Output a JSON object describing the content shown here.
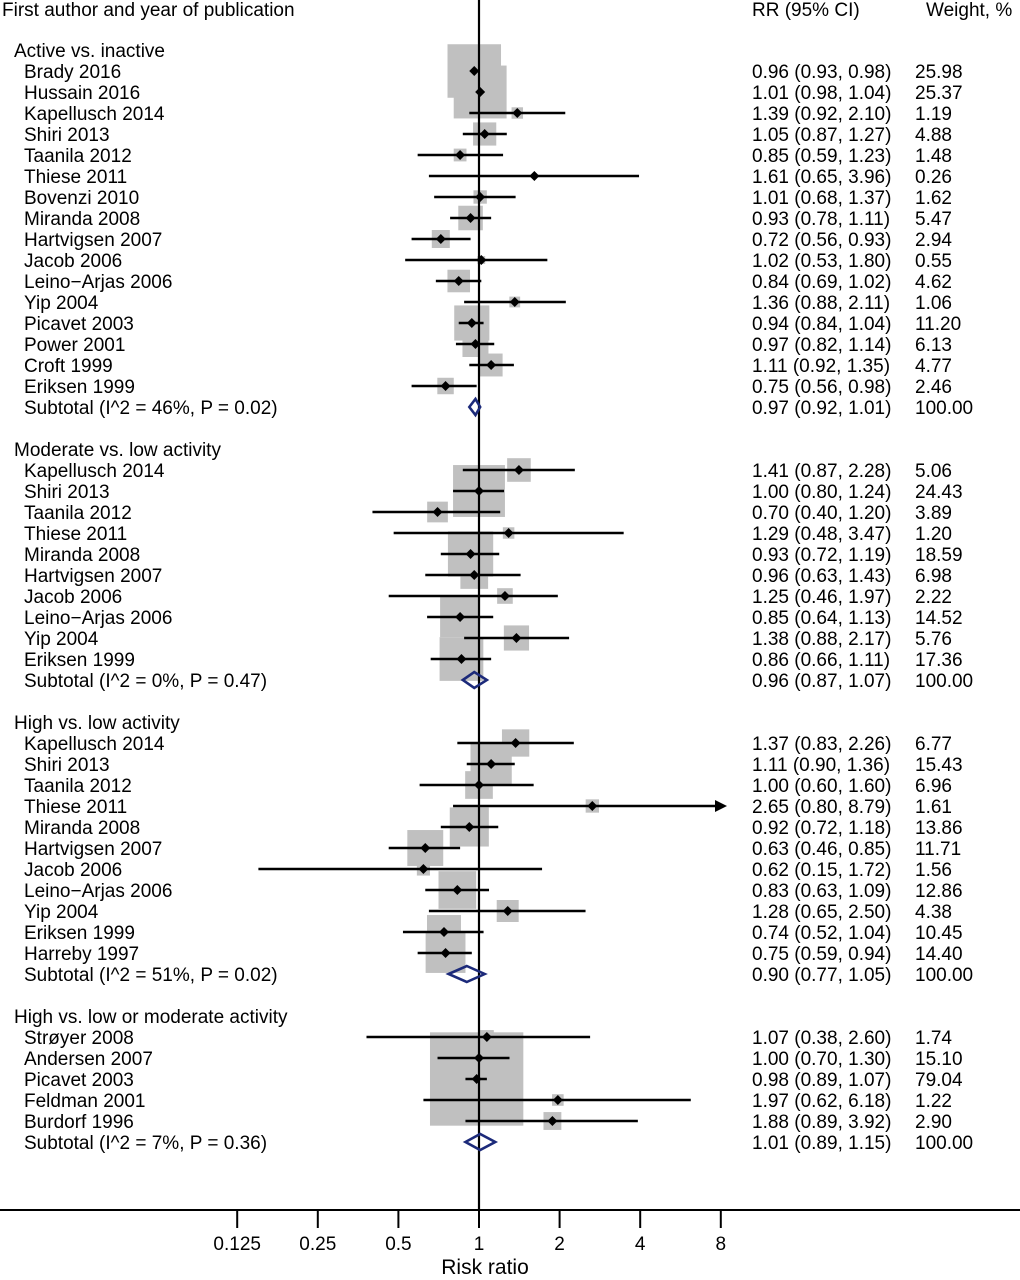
{
  "chart_data": {
    "type": "forest",
    "columns": {
      "study": "First author and year of publication",
      "rr": "RR (95% CI)",
      "weight": "Weight, %"
    },
    "xlabel": "Risk ratio",
    "x_scale": "log2",
    "xlim": [
      0.125,
      8
    ],
    "ticks": [
      {
        "value": 0.125,
        "label": "0.125"
      },
      {
        "value": 0.25,
        "label": "0.25"
      },
      {
        "value": 0.5,
        "label": "0.5"
      },
      {
        "value": 1,
        "label": "1"
      },
      {
        "value": 2,
        "label": "2"
      },
      {
        "value": 4,
        "label": "4"
      },
      {
        "value": 8,
        "label": "8"
      }
    ],
    "reference_line": 1,
    "colors": {
      "box": "#c0c0c0",
      "diamond": "#1c2a7a",
      "line": "#000000"
    },
    "groups": [
      {
        "label": "Active vs. inactive",
        "studies": [
          {
            "name": "Brady 2016",
            "rr": 0.96,
            "lo": 0.93,
            "hi": 0.98,
            "text": "0.96 (0.93, 0.98)",
            "weight": 25.98,
            "weight_text": "25.98"
          },
          {
            "name": "Hussain 2016",
            "rr": 1.01,
            "lo": 0.98,
            "hi": 1.04,
            "text": "1.01 (0.98, 1.04)",
            "weight": 25.37,
            "weight_text": "25.37"
          },
          {
            "name": "Kapellusch 2014",
            "rr": 1.39,
            "lo": 0.92,
            "hi": 2.1,
            "text": "1.39 (0.92, 2.10)",
            "weight": 1.19,
            "weight_text": "1.19"
          },
          {
            "name": "Shiri 2013",
            "rr": 1.05,
            "lo": 0.87,
            "hi": 1.27,
            "text": "1.05 (0.87, 1.27)",
            "weight": 4.88,
            "weight_text": "4.88"
          },
          {
            "name": "Taanila 2012",
            "rr": 0.85,
            "lo": 0.59,
            "hi": 1.23,
            "text": "0.85 (0.59, 1.23)",
            "weight": 1.48,
            "weight_text": "1.48"
          },
          {
            "name": "Thiese 2011",
            "rr": 1.61,
            "lo": 0.65,
            "hi": 3.96,
            "text": "1.61 (0.65, 3.96)",
            "weight": 0.26,
            "weight_text": "0.26"
          },
          {
            "name": "Bovenzi 2010",
            "rr": 1.01,
            "lo": 0.68,
            "hi": 1.37,
            "text": "1.01 (0.68, 1.37)",
            "weight": 1.62,
            "weight_text": "1.62"
          },
          {
            "name": "Miranda 2008",
            "rr": 0.93,
            "lo": 0.78,
            "hi": 1.11,
            "text": "0.93 (0.78, 1.11)",
            "weight": 5.47,
            "weight_text": "5.47"
          },
          {
            "name": "Hartvigsen 2007",
            "rr": 0.72,
            "lo": 0.56,
            "hi": 0.93,
            "text": "0.72 (0.56, 0.93)",
            "weight": 2.94,
            "weight_text": "2.94"
          },
          {
            "name": "Jacob 2006",
            "rr": 1.02,
            "lo": 0.53,
            "hi": 1.8,
            "text": "1.02 (0.53, 1.80)",
            "weight": 0.55,
            "weight_text": "0.55"
          },
          {
            "name": "Leino−Arjas 2006",
            "rr": 0.84,
            "lo": 0.69,
            "hi": 1.02,
            "text": "0.84 (0.69, 1.02)",
            "weight": 4.62,
            "weight_text": "4.62"
          },
          {
            "name": "Yip 2004",
            "rr": 1.36,
            "lo": 0.88,
            "hi": 2.11,
            "text": "1.36 (0.88, 2.11)",
            "weight": 1.06,
            "weight_text": "1.06"
          },
          {
            "name": "Picavet 2003",
            "rr": 0.94,
            "lo": 0.84,
            "hi": 1.04,
            "text": "0.94 (0.84, 1.04)",
            "weight": 11.2,
            "weight_text": "11.20"
          },
          {
            "name": "Power 2001",
            "rr": 0.97,
            "lo": 0.82,
            "hi": 1.14,
            "text": "0.97 (0.82, 1.14)",
            "weight": 6.13,
            "weight_text": "6.13"
          },
          {
            "name": "Croft 1999",
            "rr": 1.11,
            "lo": 0.92,
            "hi": 1.35,
            "text": "1.11 (0.92, 1.35)",
            "weight": 4.77,
            "weight_text": "4.77"
          },
          {
            "name": "Eriksen 1999",
            "rr": 0.75,
            "lo": 0.56,
            "hi": 0.98,
            "text": "0.75 (0.56, 0.98)",
            "weight": 2.46,
            "weight_text": "2.46"
          }
        ],
        "subtotal": {
          "label": "Subtotal (I^2 = 46%, P = 0.02)",
          "rr": 0.97,
          "lo": 0.92,
          "hi": 1.01,
          "text": "0.97 (0.92, 1.01)",
          "weight_text": "100.00"
        }
      },
      {
        "label": "Moderate vs. low activity",
        "studies": [
          {
            "name": "Kapellusch 2014",
            "rr": 1.41,
            "lo": 0.87,
            "hi": 2.28,
            "text": "1.41 (0.87, 2.28)",
            "weight": 5.06,
            "weight_text": "5.06"
          },
          {
            "name": "Shiri 2013",
            "rr": 1.0,
            "lo": 0.8,
            "hi": 1.24,
            "text": "1.00 (0.80, 1.24)",
            "weight": 24.43,
            "weight_text": "24.43"
          },
          {
            "name": "Taanila 2012",
            "rr": 0.7,
            "lo": 0.4,
            "hi": 1.2,
            "text": "0.70 (0.40, 1.20)",
            "weight": 3.89,
            "weight_text": "3.89"
          },
          {
            "name": "Thiese 2011",
            "rr": 1.29,
            "lo": 0.48,
            "hi": 3.47,
            "text": "1.29 (0.48, 3.47)",
            "weight": 1.2,
            "weight_text": "1.20"
          },
          {
            "name": "Miranda 2008",
            "rr": 0.93,
            "lo": 0.72,
            "hi": 1.19,
            "text": "0.93 (0.72, 1.19)",
            "weight": 18.59,
            "weight_text": "18.59"
          },
          {
            "name": "Hartvigsen 2007",
            "rr": 0.96,
            "lo": 0.63,
            "hi": 1.43,
            "text": "0.96 (0.63, 1.43)",
            "weight": 6.98,
            "weight_text": "6.98"
          },
          {
            "name": "Jacob 2006",
            "rr": 1.25,
            "lo": 0.46,
            "hi": 1.97,
            "text": "1.25 (0.46, 1.97)",
            "weight": 2.22,
            "weight_text": "2.22"
          },
          {
            "name": "Leino−Arjas 2006",
            "rr": 0.85,
            "lo": 0.64,
            "hi": 1.13,
            "text": "0.85 (0.64, 1.13)",
            "weight": 14.52,
            "weight_text": "14.52"
          },
          {
            "name": "Yip 2004",
            "rr": 1.38,
            "lo": 0.88,
            "hi": 2.17,
            "text": "1.38 (0.88, 2.17)",
            "weight": 5.76,
            "weight_text": "5.76"
          },
          {
            "name": "Eriksen 1999",
            "rr": 0.86,
            "lo": 0.66,
            "hi": 1.11,
            "text": "0.86 (0.66, 1.11)",
            "weight": 17.36,
            "weight_text": "17.36"
          }
        ],
        "subtotal": {
          "label": "Subtotal (I^2 = 0%, P = 0.47)",
          "rr": 0.96,
          "lo": 0.87,
          "hi": 1.07,
          "text": "0.96 (0.87, 1.07)",
          "weight_text": "100.00"
        }
      },
      {
        "label": "High vs. low activity",
        "studies": [
          {
            "name": "Kapellusch 2014",
            "rr": 1.37,
            "lo": 0.83,
            "hi": 2.26,
            "text": "1.37 (0.83, 2.26)",
            "weight": 6.77,
            "weight_text": "6.77"
          },
          {
            "name": "Shiri 2013",
            "rr": 1.11,
            "lo": 0.9,
            "hi": 1.36,
            "text": "1.11 (0.90, 1.36)",
            "weight": 15.43,
            "weight_text": "15.43"
          },
          {
            "name": "Taanila 2012",
            "rr": 1.0,
            "lo": 0.6,
            "hi": 1.6,
            "text": "1.00 (0.60, 1.60)",
            "weight": 6.96,
            "weight_text": "6.96"
          },
          {
            "name": "Thiese 2011",
            "rr": 2.65,
            "lo": 0.8,
            "hi": 8.79,
            "text": "2.65 (0.80, 8.79)",
            "weight": 1.61,
            "weight_text": "1.61"
          },
          {
            "name": "Miranda 2008",
            "rr": 0.92,
            "lo": 0.72,
            "hi": 1.18,
            "text": "0.92 (0.72, 1.18)",
            "weight": 13.86,
            "weight_text": "13.86"
          },
          {
            "name": "Hartvigsen 2007",
            "rr": 0.63,
            "lo": 0.46,
            "hi": 0.85,
            "text": "0.63 (0.46, 0.85)",
            "weight": 11.71,
            "weight_text": "11.71"
          },
          {
            "name": "Jacob 2006",
            "rr": 0.62,
            "lo": 0.15,
            "hi": 1.72,
            "text": "0.62 (0.15, 1.72)",
            "weight": 1.56,
            "weight_text": "1.56"
          },
          {
            "name": "Leino−Arjas 2006",
            "rr": 0.83,
            "lo": 0.63,
            "hi": 1.09,
            "text": "0.83 (0.63, 1.09)",
            "weight": 12.86,
            "weight_text": "12.86"
          },
          {
            "name": "Yip 2004",
            "rr": 1.28,
            "lo": 0.65,
            "hi": 2.5,
            "text": "1.28 (0.65, 2.50)",
            "weight": 4.38,
            "weight_text": "4.38"
          },
          {
            "name": "Eriksen 1999",
            "rr": 0.74,
            "lo": 0.52,
            "hi": 1.04,
            "text": "0.74 (0.52, 1.04)",
            "weight": 10.45,
            "weight_text": "10.45"
          },
          {
            "name": "Harreby 1997",
            "rr": 0.75,
            "lo": 0.59,
            "hi": 0.94,
            "text": "0.75 (0.59, 0.94)",
            "weight": 14.4,
            "weight_text": "14.40"
          }
        ],
        "subtotal": {
          "label": "Subtotal (I^2 = 51%, P = 0.02)",
          "rr": 0.9,
          "lo": 0.77,
          "hi": 1.05,
          "text": "0.90 (0.77, 1.05)",
          "weight_text": "100.00"
        }
      },
      {
        "label": "High vs. low or moderate activity",
        "studies": [
          {
            "name": "Strøyer 2008",
            "rr": 1.07,
            "lo": 0.38,
            "hi": 2.6,
            "text": "1.07 (0.38, 2.60)",
            "weight": 1.74,
            "weight_text": "1.74"
          },
          {
            "name": "Andersen 2007",
            "rr": 1.0,
            "lo": 0.7,
            "hi": 1.3,
            "text": "1.00 (0.70, 1.30)",
            "weight": 15.1,
            "weight_text": "15.10"
          },
          {
            "name": "Picavet 2003",
            "rr": 0.98,
            "lo": 0.89,
            "hi": 1.07,
            "text": "0.98 (0.89, 1.07)",
            "weight": 79.04,
            "weight_text": "79.04"
          },
          {
            "name": "Feldman 2001",
            "rr": 1.97,
            "lo": 0.62,
            "hi": 6.18,
            "text": "1.97 (0.62, 6.18)",
            "weight": 1.22,
            "weight_text": "1.22"
          },
          {
            "name": "Burdorf 1996",
            "rr": 1.88,
            "lo": 0.89,
            "hi": 3.92,
            "text": "1.88 (0.89, 3.92)",
            "weight": 2.9,
            "weight_text": "2.90"
          }
        ],
        "subtotal": {
          "label": "Subtotal (I^2 = 7%, P = 0.36)",
          "rr": 1.01,
          "lo": 0.89,
          "hi": 1.15,
          "text": "1.01 (0.89, 1.15)",
          "weight_text": "100.00"
        }
      }
    ]
  }
}
